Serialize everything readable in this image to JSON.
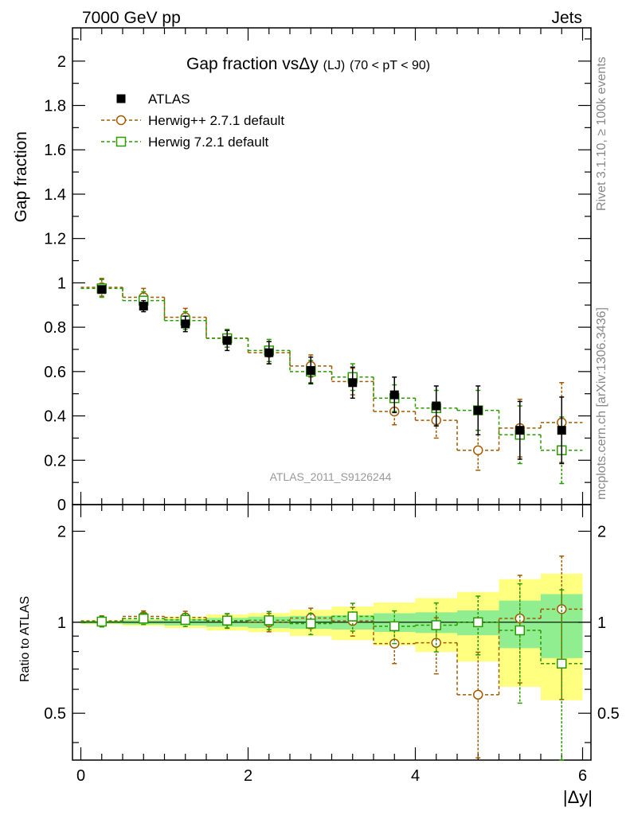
{
  "header": {
    "energy": "7000 GeV pp",
    "category": "Jets"
  },
  "side_labels": {
    "rivet": "Rivet 3.1.10, ≥ 100k events",
    "mcplots": "mcplots.cern.ch [arXiv:1306.3436]"
  },
  "chart_data": {
    "type": "scatter",
    "title": "Gap fraction vsΔy (LJ) (70 < pT <  90)",
    "title_parts": {
      "main": "Gap fraction vsΔy",
      "sub": "(LJ)",
      "range": "(70 < pT <  90)"
    },
    "watermark": "ATLAS_2011_S9126244",
    "xlabel": "|Δy|",
    "ylabel": "Gap fraction",
    "ratio_ylabel": "Ratio to ATLAS",
    "xlim": [
      -0.1,
      6.1
    ],
    "ylim": [
      0,
      2.15
    ],
    "ratio_ylim": [
      0.35,
      2.45
    ],
    "ratio_log": true,
    "x_ticks": [
      "0",
      "2",
      "4",
      "6"
    ],
    "y_ticks": [
      "0",
      "0.2",
      "0.4",
      "0.6",
      "0.8",
      "1",
      "1.2",
      "1.4",
      "1.6",
      "1.8",
      "2"
    ],
    "ratio_ticks": [
      "0.5",
      "1",
      "2"
    ],
    "legend_position": "top-left",
    "x": [
      0.25,
      0.75,
      1.25,
      1.75,
      2.25,
      2.75,
      3.25,
      3.75,
      4.25,
      4.75,
      5.25,
      5.75
    ],
    "series": [
      {
        "name": "ATLAS",
        "color": "#000000",
        "marker": "filled-square",
        "values": [
          0.97,
          0.895,
          0.815,
          0.74,
          0.685,
          0.605,
          0.55,
          0.495,
          0.445,
          0.425,
          0.335,
          0.335
        ],
        "band_stat": [
          0.01,
          0.015,
          0.02,
          0.025,
          0.03,
          0.03,
          0.03,
          0.035,
          0.035,
          0.04,
          0.06,
          0.08
        ],
        "band_total": [
          0.015,
          0.025,
          0.035,
          0.045,
          0.05,
          0.06,
          0.07,
          0.08,
          0.09,
          0.11,
          0.13,
          0.15
        ]
      },
      {
        "name": "Herwig++ 2.7.1 default",
        "color": "#a05a00",
        "marker": "open-circle",
        "values": [
          0.98,
          0.935,
          0.845,
          0.75,
          0.685,
          0.625,
          0.555,
          0.42,
          0.38,
          0.245,
          0.345,
          0.37
        ],
        "errors": [
          0.04,
          0.04,
          0.04,
          0.04,
          0.05,
          0.05,
          0.06,
          0.06,
          0.08,
          0.09,
          0.13,
          0.18
        ],
        "ratio": [
          1.01,
          1.045,
          1.037,
          1.01,
          1.0,
          1.033,
          1.01,
          0.85,
          0.855,
          0.576,
          1.03,
          1.105
        ],
        "ratio_errors": [
          0.04,
          0.045,
          0.05,
          0.055,
          0.07,
          0.08,
          0.11,
          0.12,
          0.18,
          0.22,
          0.4,
          0.55
        ]
      },
      {
        "name": "Herwig 7.2.1 default",
        "color": "#2a9a00",
        "marker": "open-square",
        "values": [
          0.975,
          0.92,
          0.83,
          0.75,
          0.695,
          0.6,
          0.575,
          0.48,
          0.435,
          0.425,
          0.315,
          0.245
        ],
        "errors": [
          0.04,
          0.04,
          0.04,
          0.04,
          0.05,
          0.05,
          0.06,
          0.06,
          0.08,
          0.09,
          0.13,
          0.15
        ],
        "ratio": [
          1.005,
          1.028,
          1.018,
          1.013,
          1.015,
          0.99,
          1.045,
          0.97,
          0.978,
          1.0,
          0.94,
          0.73
        ],
        "ratio_errors": [
          0.04,
          0.045,
          0.05,
          0.055,
          0.07,
          0.08,
          0.11,
          0.12,
          0.18,
          0.22,
          0.4,
          0.55
        ]
      }
    ]
  }
}
